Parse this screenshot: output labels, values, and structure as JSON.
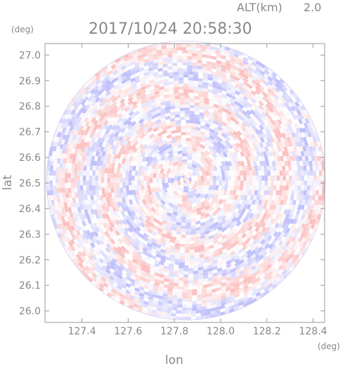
{
  "header": {
    "altitude_label": "ALT(km)",
    "altitude_value": "2.0",
    "timestamp": "2017/10/24 20:58:30"
  },
  "chart_data": {
    "type": "heatmap",
    "title": "2017/10/24 20:58:30",
    "xlabel": "lon",
    "ylabel": "lat",
    "x_unit": "(deg)",
    "y_unit": "(deg)",
    "xlim": [
      127.24,
      128.45
    ],
    "ylim": [
      25.955,
      27.045
    ],
    "x_ticks": [
      127.4,
      127.6,
      127.8,
      128.0,
      128.2,
      128.4
    ],
    "x_tick_labels": [
      "127.4",
      "127.6",
      "127.8",
      "128.0",
      "128.2",
      "128.4"
    ],
    "y_ticks": [
      26.0,
      26.1,
      26.2,
      26.3,
      26.4,
      26.5,
      26.6,
      26.7,
      26.8,
      26.9,
      27.0
    ],
    "y_tick_labels": [
      "26.0",
      "26.1",
      "26.2",
      "26.3",
      "26.4",
      "26.5",
      "26.6",
      "26.7",
      "26.8",
      "26.9",
      "27.0"
    ],
    "radar_center": {
      "lon": 127.85,
      "lat": 26.51
    },
    "radar_coverage_lat_extent": 0.545,
    "grid": false,
    "colormap": {
      "negative": "#6a6af5",
      "zero": "#ffffff",
      "positive": "#f56a6a"
    }
  }
}
